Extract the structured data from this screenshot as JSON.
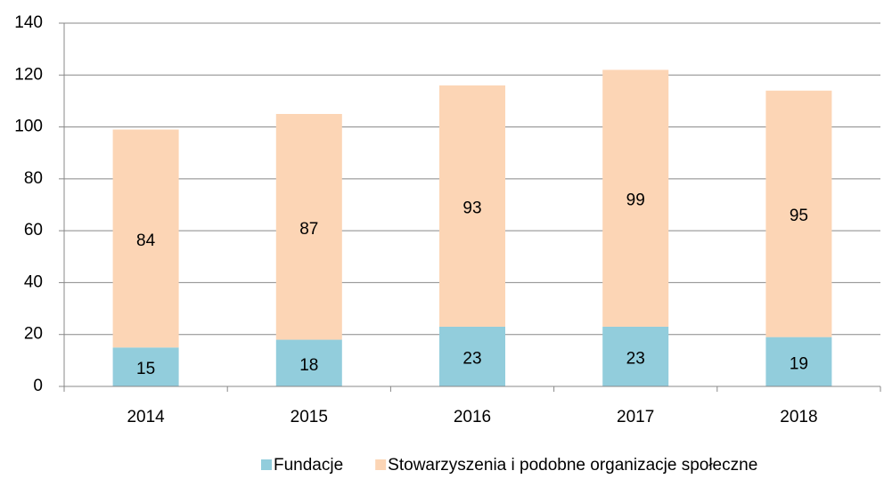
{
  "chart_data": {
    "type": "stacked_bar",
    "categories": [
      "2014",
      "2015",
      "2016",
      "2017",
      "2018"
    ],
    "series": [
      {
        "name": "Fundacje",
        "color": "#92cddc",
        "values": [
          15,
          18,
          23,
          23,
          19
        ]
      },
      {
        "name": "Stowarzyszenia i podobne organizacje społeczne",
        "color": "#fcd5b5",
        "values": [
          84,
          87,
          93,
          99,
          95
        ]
      }
    ],
    "ylim": [
      0,
      140
    ],
    "yticks": [
      0,
      20,
      40,
      60,
      80,
      100,
      120,
      140
    ],
    "grid": true,
    "legend": "bottom"
  }
}
